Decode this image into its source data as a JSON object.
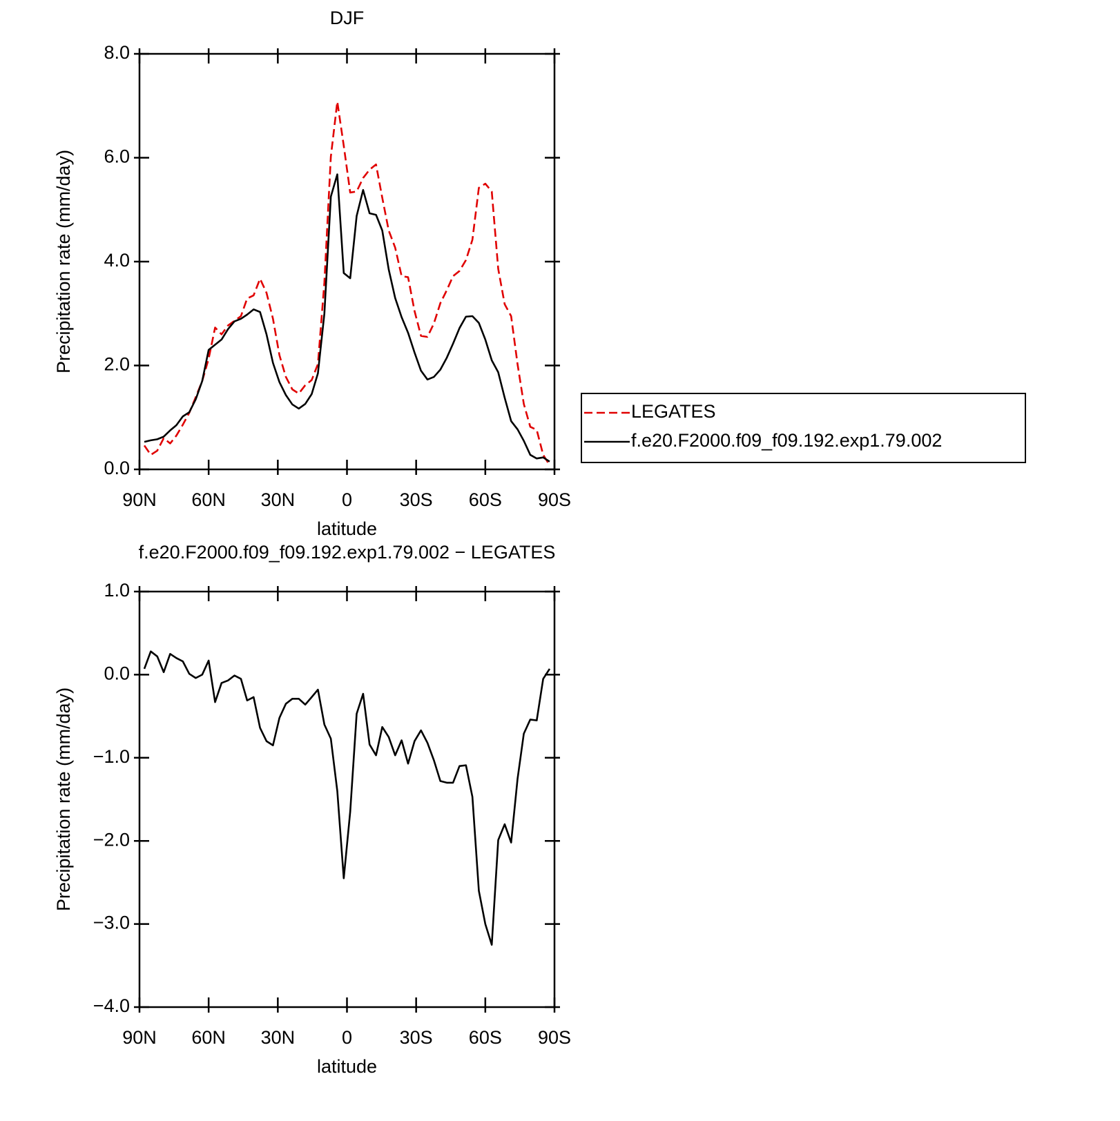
{
  "chart_data": [
    {
      "type": "line",
      "title": "DJF",
      "xlabel": "latitude",
      "ylabel": "Precipitation rate (mm/day)",
      "x": [
        87.9,
        85.1,
        82.3,
        79.5,
        76.7,
        74.0,
        71.2,
        68.4,
        65.6,
        62.8,
        60.0,
        57.2,
        54.4,
        51.6,
        48.8,
        46.0,
        43.3,
        40.5,
        37.7,
        34.9,
        32.1,
        29.3,
        26.5,
        23.7,
        20.9,
        18.1,
        15.3,
        12.6,
        9.8,
        7.0,
        4.2,
        1.4,
        -1.4,
        -4.2,
        -7.0,
        -9.8,
        -12.6,
        -15.3,
        -18.1,
        -20.9,
        -23.7,
        -26.5,
        -29.3,
        -32.1,
        -34.9,
        -37.7,
        -40.5,
        -43.3,
        -46.0,
        -48.8,
        -51.6,
        -54.4,
        -57.2,
        -60.0,
        -62.8,
        -65.6,
        -68.4,
        -71.2,
        -74.0,
        -76.7,
        -79.5,
        -82.3,
        -85.1,
        -87.9
      ],
      "series": [
        {
          "name": "LEGATES",
          "color": "#e00000",
          "dash": "dashed",
          "values": [
            0.46,
            0.28,
            0.36,
            0.6,
            0.5,
            0.65,
            0.86,
            1.09,
            1.39,
            1.7,
            2.13,
            2.73,
            2.6,
            2.77,
            2.86,
            2.95,
            3.29,
            3.35,
            3.67,
            3.4,
            2.9,
            2.2,
            1.78,
            1.54,
            1.46,
            1.62,
            1.72,
            2.03,
            3.6,
            6.02,
            7.08,
            6.23,
            5.33,
            5.35,
            5.61,
            5.77,
            5.87,
            5.23,
            4.6,
            4.27,
            3.72,
            3.7,
            3.05,
            2.57,
            2.55,
            2.81,
            3.2,
            3.45,
            3.72,
            3.82,
            4.03,
            4.42,
            5.42,
            5.5,
            5.35,
            3.86,
            3.18,
            2.95,
            2.02,
            1.26,
            0.82,
            0.76,
            0.28,
            0.08
          ]
        },
        {
          "name": "f.e20.F2000.f09_f09.192.exp1.79.002",
          "color": "#000000",
          "dash": "solid",
          "values": [
            0.53,
            0.56,
            0.58,
            0.63,
            0.75,
            0.85,
            1.02,
            1.1,
            1.35,
            1.7,
            2.3,
            2.4,
            2.5,
            2.7,
            2.85,
            2.9,
            2.98,
            3.08,
            3.03,
            2.6,
            2.05,
            1.68,
            1.43,
            1.25,
            1.17,
            1.26,
            1.45,
            1.85,
            3.0,
            5.25,
            5.68,
            3.78,
            3.68,
            4.88,
            5.38,
            4.93,
            4.9,
            4.6,
            3.85,
            3.3,
            2.93,
            2.63,
            2.25,
            1.9,
            1.73,
            1.78,
            1.92,
            2.15,
            2.42,
            2.72,
            2.94,
            2.95,
            2.82,
            2.5,
            2.1,
            1.87,
            1.38,
            0.93,
            0.77,
            0.55,
            0.28,
            0.21,
            0.23,
            0.15
          ]
        }
      ],
      "xlim": [
        90,
        -90
      ],
      "xticks": [
        {
          "value": 90,
          "label": "90N"
        },
        {
          "value": 60,
          "label": "60N"
        },
        {
          "value": 30,
          "label": "30N"
        },
        0,
        {
          "value": -30,
          "label": "30S"
        },
        {
          "value": -60,
          "label": "60S"
        },
        {
          "value": -90,
          "label": "90S"
        }
      ],
      "ylim": [
        0,
        8
      ],
      "yticks": [
        {
          "value": 0,
          "label": "0.0"
        },
        {
          "value": 2,
          "label": "2.0"
        },
        {
          "value": 4,
          "label": "4.0"
        },
        {
          "value": 6,
          "label": "6.0"
        },
        {
          "value": 8,
          "label": "8.0"
        }
      ],
      "legend": "right"
    },
    {
      "type": "line",
      "title": "f.e20.F2000.f09_f09.192.exp1.79.002 − LEGATES",
      "xlabel": "latitude",
      "ylabel": "Precipitation rate (mm/day)",
      "x": [
        87.9,
        85.1,
        82.3,
        79.5,
        76.7,
        74.0,
        71.2,
        68.4,
        65.6,
        62.8,
        60.0,
        57.2,
        54.4,
        51.6,
        48.8,
        46.0,
        43.3,
        40.5,
        37.7,
        34.9,
        32.1,
        29.3,
        26.5,
        23.7,
        20.9,
        18.1,
        15.3,
        12.6,
        9.8,
        7.0,
        4.2,
        1.4,
        -1.4,
        -4.2,
        -7.0,
        -9.8,
        -12.6,
        -15.3,
        -18.1,
        -20.9,
        -23.7,
        -26.5,
        -29.3,
        -32.1,
        -34.9,
        -37.7,
        -40.5,
        -43.3,
        -46.0,
        -48.8,
        -51.6,
        -54.4,
        -57.2,
        -60.0,
        -62.8,
        -65.6,
        -68.4,
        -71.2,
        -74.0,
        -76.7,
        -79.5,
        -82.3,
        -85.1,
        -87.9
      ],
      "series": [
        {
          "color": "#000000",
          "dash": "solid",
          "values": [
            0.07,
            0.28,
            0.22,
            0.03,
            0.25,
            0.2,
            0.16,
            0.01,
            -0.04,
            0.0,
            0.17,
            -0.33,
            -0.1,
            -0.07,
            -0.01,
            -0.05,
            -0.31,
            -0.27,
            -0.64,
            -0.8,
            -0.85,
            -0.52,
            -0.35,
            -0.29,
            -0.29,
            -0.36,
            -0.27,
            -0.18,
            -0.6,
            -0.77,
            -1.4,
            -2.45,
            -1.65,
            -0.47,
            -0.23,
            -0.84,
            -0.97,
            -0.63,
            -0.75,
            -0.97,
            -0.79,
            -1.07,
            -0.8,
            -0.67,
            -0.82,
            -1.03,
            -1.28,
            -1.3,
            -1.3,
            -1.1,
            -1.09,
            -1.47,
            -2.6,
            -3.0,
            -3.25,
            -1.99,
            -1.8,
            -2.02,
            -1.25,
            -0.71,
            -0.54,
            -0.55,
            -0.05,
            0.07
          ]
        }
      ],
      "xlim": [
        90,
        -90
      ],
      "xticks": [
        {
          "value": 90,
          "label": "90N"
        },
        {
          "value": 60,
          "label": "60N"
        },
        {
          "value": 30,
          "label": "30N"
        },
        0,
        {
          "value": -30,
          "label": "30S"
        },
        {
          "value": -60,
          "label": "60S"
        },
        {
          "value": -90,
          "label": "90S"
        }
      ],
      "ylim": [
        -4,
        1
      ],
      "yticks": [
        {
          "value": -4,
          "label": "−4.0"
        },
        {
          "value": -3,
          "label": "−3.0"
        },
        {
          "value": -2,
          "label": "−2.0"
        },
        {
          "value": -1,
          "label": "−1.0"
        },
        {
          "value": 0,
          "label": "0.0"
        },
        {
          "value": 1,
          "label": "1.0"
        }
      ]
    }
  ]
}
